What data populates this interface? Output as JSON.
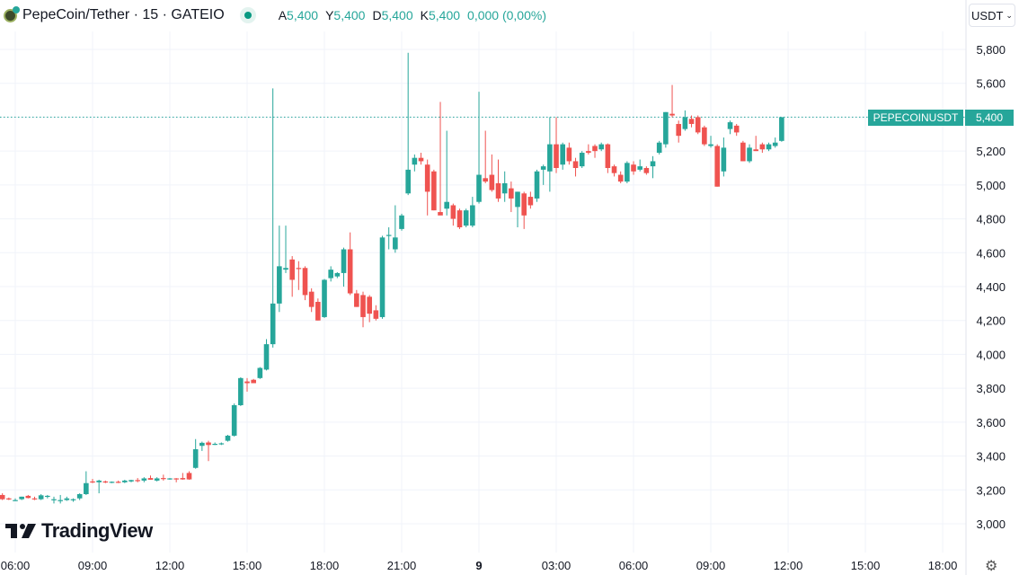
{
  "header": {
    "title": "PepeCoin/Tether · 15 · GATEIO",
    "ohlc": [
      {
        "k": "A",
        "v": "5,400"
      },
      {
        "k": "Y",
        "v": "5,400"
      },
      {
        "k": "D",
        "v": "5,400"
      },
      {
        "k": "K",
        "v": "5,400"
      }
    ],
    "change": "0,000 (0,00%)",
    "currency": "USDT"
  },
  "brand": "TradingView",
  "price_tag": {
    "symbol": "PEPECOINUSDT",
    "price": "5,400"
  },
  "colors": {
    "up": "#26a69a",
    "down": "#ef5350",
    "grid": "#f0f3fa"
  },
  "chart_data": {
    "type": "candlestick",
    "interval": "15m",
    "title": "PepeCoin/Tether · 15 · GATEIO",
    "ylim": [
      3000,
      5800
    ],
    "y_ticks": [
      {
        "v": 5800,
        "label": "5,800"
      },
      {
        "v": 5600,
        "label": "5,600"
      },
      {
        "v": 5400,
        "label": "5,400"
      },
      {
        "v": 5200,
        "label": "5,200"
      },
      {
        "v": 5000,
        "label": "5,000"
      },
      {
        "v": 4800,
        "label": "4,800"
      },
      {
        "v": 4600,
        "label": "4,600"
      },
      {
        "v": 4400,
        "label": "4,400"
      },
      {
        "v": 4200,
        "label": "4,200"
      },
      {
        "v": 4000,
        "label": "4,000"
      },
      {
        "v": 3800,
        "label": "3,800"
      },
      {
        "v": 3600,
        "label": "3,600"
      },
      {
        "v": 3400,
        "label": "3,400"
      },
      {
        "v": 3200,
        "label": "3,200"
      },
      {
        "v": 3000,
        "label": "3,000"
      }
    ],
    "x_ticks": [
      {
        "i": 2,
        "label": "06:00"
      },
      {
        "i": 14,
        "label": "09:00"
      },
      {
        "i": 26,
        "label": "12:00"
      },
      {
        "i": 38,
        "label": "15:00"
      },
      {
        "i": 50,
        "label": "18:00"
      },
      {
        "i": 62,
        "label": "21:00"
      },
      {
        "i": 74,
        "label": "9",
        "bold": true
      },
      {
        "i": 86,
        "label": "03:00"
      },
      {
        "i": 98,
        "label": "06:00"
      },
      {
        "i": 110,
        "label": "09:00"
      },
      {
        "i": 122,
        "label": "12:00"
      },
      {
        "i": 134,
        "label": "15:00"
      },
      {
        "i": 146,
        "label": "18:00"
      }
    ],
    "last_price": 5400,
    "ohlc": [
      [
        3170,
        3180,
        3140,
        3145
      ],
      [
        3150,
        3155,
        3140,
        3148
      ],
      [
        3140,
        3150,
        3135,
        3140
      ],
      [
        3145,
        3160,
        3140,
        3160
      ],
      [
        3165,
        3170,
        3150,
        3152
      ],
      [
        3150,
        3160,
        3140,
        3145
      ],
      [
        3145,
        3175,
        3140,
        3168
      ],
      [
        3160,
        3170,
        3150,
        3165
      ],
      [
        3140,
        3160,
        3120,
        3145
      ],
      [
        3135,
        3170,
        3120,
        3140
      ],
      [
        3140,
        3160,
        3135,
        3150
      ],
      [
        3140,
        3150,
        3130,
        3145
      ],
      [
        3150,
        3180,
        3140,
        3175
      ],
      [
        3175,
        3310,
        3170,
        3240
      ],
      [
        3250,
        3265,
        3240,
        3245
      ],
      [
        3245,
        3260,
        3180,
        3255
      ],
      [
        3250,
        3255,
        3240,
        3245
      ],
      [
        3245,
        3250,
        3240,
        3248
      ],
      [
        3248,
        3255,
        3240,
        3245
      ],
      [
        3245,
        3260,
        3240,
        3255
      ],
      [
        3250,
        3260,
        3245,
        3258
      ],
      [
        3258,
        3270,
        3245,
        3255
      ],
      [
        3255,
        3275,
        3245,
        3268
      ],
      [
        3270,
        3285,
        3260,
        3260
      ],
      [
        3255,
        3275,
        3250,
        3268
      ],
      [
        3270,
        3290,
        3255,
        3265
      ],
      [
        3265,
        3270,
        3260,
        3268
      ],
      [
        3268,
        3270,
        3245,
        3266
      ],
      [
        3270,
        3300,
        3260,
        3262
      ],
      [
        3300,
        3310,
        3260,
        3262
      ],
      [
        3330,
        3500,
        3325,
        3440
      ],
      [
        3460,
        3485,
        3430,
        3478
      ],
      [
        3480,
        3490,
        3370,
        3465
      ],
      [
        3470,
        3480,
        3465,
        3472
      ],
      [
        3470,
        3480,
        3465,
        3475
      ],
      [
        3490,
        3525,
        3485,
        3520
      ],
      [
        3520,
        3710,
        3515,
        3700
      ],
      [
        3700,
        3865,
        3695,
        3860
      ],
      [
        3840,
        3860,
        3780,
        3830
      ],
      [
        3850,
        3855,
        3835,
        3830
      ],
      [
        3860,
        3925,
        3855,
        3920
      ],
      [
        3910,
        4090,
        3905,
        4060
      ],
      [
        4060,
        5570,
        4040,
        4300
      ],
      [
        4300,
        4760,
        4250,
        4520
      ],
      [
        4500,
        4760,
        4480,
        4510
      ],
      [
        4560,
        4580,
        4340,
        4440
      ],
      [
        4510,
        4550,
        4380,
        4505
      ],
      [
        4510,
        4520,
        4320,
        4350
      ],
      [
        4370,
        4390,
        4250,
        4280
      ],
      [
        4310,
        4330,
        4200,
        4200
      ],
      [
        4220,
        4445,
        4215,
        4440
      ],
      [
        4450,
        4520,
        4430,
        4500
      ],
      [
        4460,
        4485,
        4450,
        4480
      ],
      [
        4480,
        4630,
        4400,
        4620
      ],
      [
        4620,
        4720,
        4350,
        4360
      ],
      [
        4360,
        4380,
        4280,
        4280
      ],
      [
        4350,
        4370,
        4160,
        4220
      ],
      [
        4340,
        4350,
        4190,
        4240
      ],
      [
        4260,
        4290,
        4200,
        4210
      ],
      [
        4220,
        4700,
        4210,
        4690
      ],
      [
        4700,
        4750,
        4620,
        4705
      ],
      [
        4620,
        4880,
        4600,
        4690
      ],
      [
        4740,
        4830,
        4730,
        4820
      ],
      [
        4950,
        5780,
        4940,
        5090
      ],
      [
        5120,
        5180,
        5080,
        5160
      ],
      [
        5160,
        5190,
        5120,
        5140
      ],
      [
        5120,
        5150,
        4820,
        4960
      ],
      [
        5080,
        5090,
        4850,
        4850
      ],
      [
        4840,
        5490,
        4830,
        4820
      ],
      [
        4860,
        5320,
        4820,
        4900
      ],
      [
        4880,
        4890,
        4760,
        4800
      ],
      [
        4850,
        4860,
        4740,
        4750
      ],
      [
        4760,
        4860,
        4750,
        4850
      ],
      [
        4760,
        4930,
        4750,
        4880
      ],
      [
        4900,
        5550,
        4890,
        5060
      ],
      [
        5040,
        5320,
        5010,
        5020
      ],
      [
        5060,
        5180,
        4960,
        4970
      ],
      [
        5010,
        5150,
        4900,
        4920
      ],
      [
        4950,
        5080,
        4900,
        5010
      ],
      [
        4980,
        5020,
        4840,
        4920
      ],
      [
        4870,
        4960,
        4750,
        4960
      ],
      [
        4950,
        4960,
        4740,
        4820
      ],
      [
        4930,
        4960,
        4860,
        4880
      ],
      [
        4920,
        5090,
        4900,
        5080
      ],
      [
        5090,
        5120,
        5000,
        5110
      ],
      [
        5080,
        5400,
        4960,
        5240
      ],
      [
        5240,
        5400,
        5070,
        5100
      ],
      [
        5120,
        5250,
        5090,
        5240
      ],
      [
        5220,
        5250,
        5120,
        5140
      ],
      [
        5140,
        5160,
        5050,
        5100
      ],
      [
        5110,
        5200,
        5100,
        5190
      ],
      [
        5200,
        5240,
        5180,
        5190
      ],
      [
        5230,
        5240,
        5160,
        5200
      ],
      [
        5210,
        5250,
        5200,
        5240
      ],
      [
        5240,
        5245,
        5070,
        5100
      ],
      [
        5110,
        5120,
        5050,
        5070
      ],
      [
        5060,
        5080,
        5010,
        5020
      ],
      [
        5020,
        5140,
        5010,
        5130
      ],
      [
        5120,
        5140,
        5060,
        5080
      ],
      [
        5090,
        5150,
        5080,
        5110
      ],
      [
        5100,
        5110,
        5060,
        5070
      ],
      [
        5110,
        5170,
        5040,
        5140
      ],
      [
        5190,
        5260,
        5180,
        5250
      ],
      [
        5240,
        5430,
        5220,
        5430
      ],
      [
        5420,
        5590,
        5400,
        5410
      ],
      [
        5360,
        5380,
        5250,
        5290
      ],
      [
        5330,
        5440,
        5320,
        5400
      ],
      [
        5390,
        5410,
        5340,
        5360
      ],
      [
        5400,
        5410,
        5300,
        5310
      ],
      [
        5340,
        5350,
        5230,
        5240
      ],
      [
        5230,
        5290,
        5220,
        5240
      ],
      [
        5230,
        5240,
        4990,
        4990
      ],
      [
        5080,
        5280,
        5050,
        5220
      ],
      [
        5330,
        5380,
        5300,
        5370
      ],
      [
        5350,
        5360,
        5290,
        5310
      ],
      [
        5250,
        5260,
        5140,
        5140
      ],
      [
        5140,
        5240,
        5130,
        5220
      ],
      [
        5210,
        5290,
        5200,
        5200
      ],
      [
        5240,
        5250,
        5190,
        5210
      ],
      [
        5210,
        5250,
        5200,
        5240
      ],
      [
        5230,
        5280,
        5220,
        5250
      ],
      [
        5260,
        5400,
        5255,
        5400
      ]
    ]
  }
}
